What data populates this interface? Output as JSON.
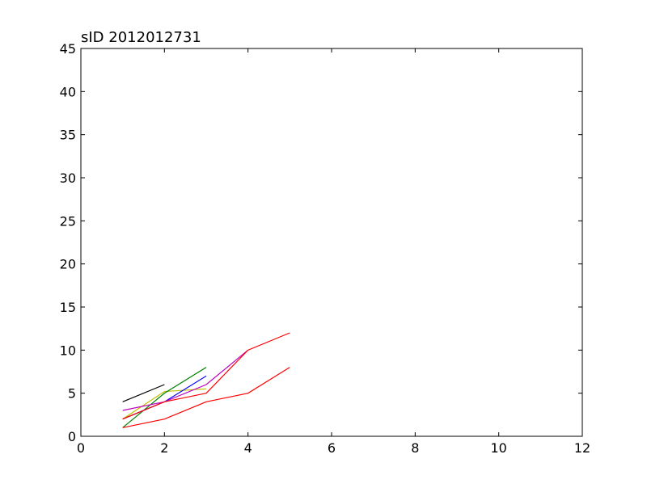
{
  "chart_data": {
    "type": "line",
    "title": "sID 2012012731",
    "xlabel": "",
    "ylabel": "",
    "xlim": [
      0,
      12
    ],
    "ylim": [
      0,
      45
    ],
    "xticks": [
      0,
      2,
      4,
      6,
      8,
      10,
      12
    ],
    "yticks": [
      0,
      5,
      10,
      15,
      20,
      25,
      30,
      35,
      40,
      45
    ],
    "xtick_labels": [
      "0",
      "2",
      "4",
      "6",
      "8",
      "10",
      "12"
    ],
    "ytick_labels": [
      "0",
      "5",
      "10",
      "15",
      "20",
      "25",
      "30",
      "35",
      "40",
      "45"
    ],
    "grid": false,
    "legend": "none",
    "series": [
      {
        "color": "#000000",
        "x": [
          1,
          2
        ],
        "y": [
          4,
          6
        ]
      },
      {
        "color": "#bfbf00",
        "x": [
          1,
          2,
          3
        ],
        "y": [
          2,
          5.2,
          5.5
        ]
      },
      {
        "color": "#008000",
        "x": [
          1,
          2,
          3
        ],
        "y": [
          1,
          5,
          8
        ]
      },
      {
        "color": "#0000ff",
        "x": [
          1,
          2,
          3
        ],
        "y": [
          2,
          4,
          7
        ]
      },
      {
        "color": "#bf00bf",
        "x": [
          1,
          2,
          3,
          4
        ],
        "y": [
          3,
          4,
          6,
          10
        ]
      },
      {
        "color": "#ff0000",
        "x": [
          1,
          2,
          3,
          4,
          5
        ],
        "y": [
          2,
          4,
          5,
          10,
          12
        ]
      },
      {
        "color": "#ff0000",
        "x": [
          1,
          2,
          3,
          4,
          5
        ],
        "y": [
          1,
          2,
          4,
          5,
          8
        ]
      }
    ]
  }
}
